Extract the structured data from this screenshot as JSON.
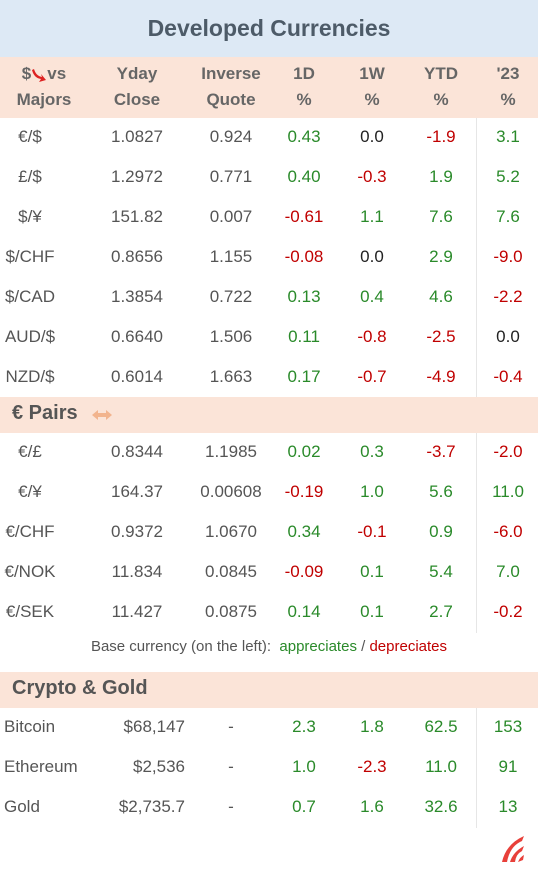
{
  "header": {
    "title": "Developed Currencies"
  },
  "columns": [
    [
      "$",
      "vs",
      "Majors"
    ],
    [
      "Yday",
      "Close"
    ],
    [
      "Inverse",
      "Quote"
    ],
    [
      "1D",
      "%"
    ],
    [
      "1W",
      "%"
    ],
    [
      "YTD",
      "%"
    ],
    [
      "'23",
      "%"
    ]
  ],
  "majors": {
    "rows": [
      {
        "pair": "€/$",
        "cells": [
          "1.0827",
          "0.924",
          "0.43",
          "0.0",
          "-1.9",
          "3.1"
        ]
      },
      {
        "pair": "£/$",
        "cells": [
          "1.2972",
          "0.771",
          "0.40",
          "-0.3",
          "1.9",
          "5.2"
        ]
      },
      {
        "pair": "$/¥",
        "cells": [
          "151.82",
          "0.007",
          "-0.61",
          "1.1",
          "7.6",
          "7.6"
        ]
      },
      {
        "pair": "$/CHF",
        "cells": [
          "0.8656",
          "1.155",
          "-0.08",
          "0.0",
          "2.9",
          "-9.0"
        ]
      },
      {
        "pair": "$/CAD",
        "cells": [
          "1.3854",
          "0.722",
          "0.13",
          "0.4",
          "4.6",
          "-2.2"
        ]
      },
      {
        "pair": "AUD/$",
        "cells": [
          "0.6640",
          "1.506",
          "0.11",
          "-0.8",
          "-2.5",
          "0.0"
        ]
      },
      {
        "pair": "NZD/$",
        "cells": [
          "0.6014",
          "1.663",
          "0.17",
          "-0.7",
          "-4.9",
          "-0.4"
        ]
      }
    ]
  },
  "euro_pairs": {
    "title": "€ Pairs",
    "rows": [
      {
        "pair": "€/£",
        "cells": [
          "0.8344",
          "1.1985",
          "0.02",
          "0.3",
          "-3.7",
          "-2.0"
        ]
      },
      {
        "pair": "€/¥",
        "cells": [
          "164.37",
          "0.00608",
          "-0.19",
          "1.0",
          "5.6",
          "11.0"
        ]
      },
      {
        "pair": "€/CHF",
        "cells": [
          "0.9372",
          "1.0670",
          "0.34",
          "-0.1",
          "0.9",
          "-6.0"
        ]
      },
      {
        "pair": "€/NOK",
        "cells": [
          "11.834",
          "0.0845",
          "-0.09",
          "0.1",
          "5.4",
          "7.0"
        ]
      },
      {
        "pair": "€/SEK",
        "cells": [
          "11.427",
          "0.0875",
          "0.14",
          "0.1",
          "2.7",
          "-0.2"
        ]
      }
    ]
  },
  "legend": {
    "base": "Base currency (on the left):",
    "up": "appreciates",
    "sep": "/",
    "down": "depreciates"
  },
  "crypto": {
    "title": "Crypto & Gold",
    "rows": [
      {
        "pair": "Bitcoin",
        "cells": [
          "$68,147",
          "-",
          "2.3",
          "1.8",
          "62.5",
          "153"
        ]
      },
      {
        "pair": "Ethereum",
        "cells": [
          "$2,536",
          "-",
          "1.0",
          "-2.3",
          "11.0",
          "91"
        ]
      },
      {
        "pair": "Gold",
        "cells": [
          "$2,735.7",
          "-",
          "0.7",
          "1.6",
          "32.6",
          "13"
        ]
      }
    ]
  },
  "colors": {
    "up": "#2a8a2a",
    "down": "#c00000",
    "flat": "#222222"
  }
}
